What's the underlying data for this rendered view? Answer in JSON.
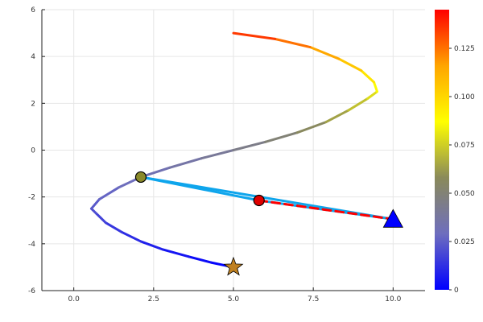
{
  "chart_data": {
    "type": "line",
    "title": "",
    "xlabel": "",
    "ylabel": "",
    "xlim": [
      -1,
      11
    ],
    "ylim": [
      -6,
      6
    ],
    "grid": true,
    "legend": "none",
    "x_ticks": [
      "0.0",
      "2.5",
      "5.0",
      "7.5",
      "10.0"
    ],
    "x_tick_values": [
      0,
      2.5,
      5,
      7.5,
      10
    ],
    "y_ticks": [
      "6",
      "4",
      "2",
      "0",
      "-2",
      "-4",
      "-6"
    ],
    "y_tick_values": [
      6,
      4,
      2,
      0,
      -2,
      -4,
      -6
    ],
    "colorbar": {
      "range": [
        0,
        0.145
      ],
      "ticks": [
        "0",
        "0.025",
        "0.050",
        "0.075",
        "0.100",
        "0.125"
      ],
      "tick_values": [
        0,
        0.025,
        0.05,
        0.075,
        0.1,
        0.125
      ],
      "colors": [
        "#0000ff",
        "#6e6ebe",
        "#8a8a5a",
        "#ffff00",
        "#ffa500",
        "#ff0000"
      ]
    },
    "trajectory": {
      "x": [
        5.0,
        4.3,
        3.6,
        2.8,
        2.1,
        1.5,
        1.0,
        0.7,
        0.55,
        0.8,
        1.4,
        2.1,
        3.0,
        4.0,
        5.0,
        6.0,
        7.0,
        7.9,
        8.6,
        9.2,
        9.5,
        9.4,
        9.0,
        8.3,
        7.4,
        6.3,
        5.0
      ],
      "y": [
        -5.0,
        -4.8,
        -4.55,
        -4.25,
        -3.9,
        -3.5,
        -3.1,
        -2.7,
        -2.5,
        -2.1,
        -1.6,
        -1.15,
        -0.75,
        -0.35,
        0.0,
        0.35,
        0.75,
        1.2,
        1.7,
        2.2,
        2.5,
        2.9,
        3.4,
        3.9,
        4.4,
        4.75,
        5.0
      ],
      "color_values": [
        0.0,
        0.002,
        0.004,
        0.007,
        0.01,
        0.013,
        0.016,
        0.019,
        0.022,
        0.025,
        0.028,
        0.031,
        0.034,
        0.038,
        0.042,
        0.047,
        0.053,
        0.06,
        0.068,
        0.075,
        0.082,
        0.09,
        0.1,
        0.11,
        0.12,
        0.13,
        0.14
      ]
    },
    "segments": [
      {
        "from": [
          2.1,
          -1.15
        ],
        "to": [
          10.0,
          -2.95
        ],
        "color": "#0ea5ec",
        "style": "solid"
      },
      {
        "from": [
          2.1,
          -1.15
        ],
        "to": [
          5.8,
          -2.15
        ],
        "color": "#0ea5ec",
        "style": "solid"
      },
      {
        "from": [
          5.8,
          -2.15
        ],
        "to": [
          10.0,
          -2.95
        ],
        "color": "#0ea5ec",
        "style": "solid"
      },
      {
        "from": [
          5.8,
          -2.15
        ],
        "to": [
          10.0,
          -2.95
        ],
        "color": "#ff0000",
        "style": "dashed"
      }
    ],
    "markers": [
      {
        "kind": "star",
        "x": 5.0,
        "y": -5.0,
        "color": "#c08020"
      },
      {
        "kind": "circle",
        "x": 2.1,
        "y": -1.15,
        "color": "#8a8a2a"
      },
      {
        "kind": "circle",
        "x": 5.8,
        "y": -2.15,
        "color": "#e00000"
      },
      {
        "kind": "triangle",
        "x": 10.0,
        "y": -2.95,
        "color": "#0000ff"
      }
    ]
  }
}
